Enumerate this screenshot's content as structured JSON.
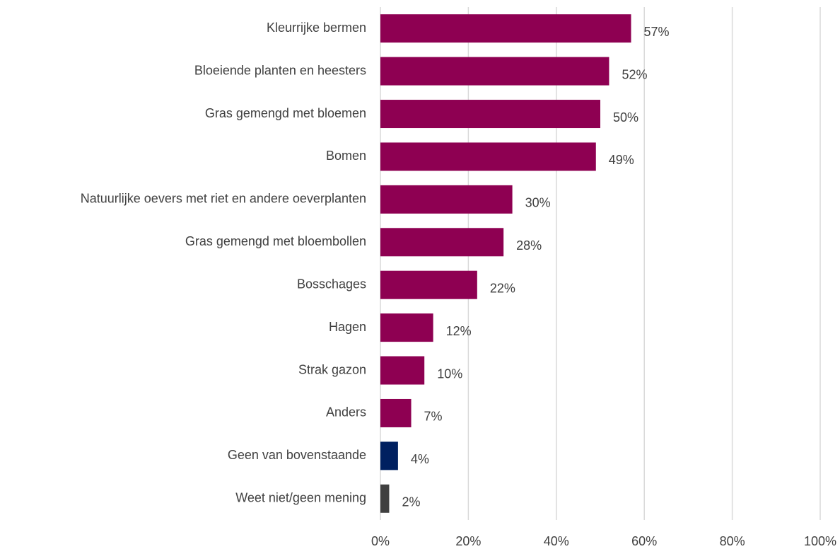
{
  "chart_data": {
    "type": "barh",
    "categories": [
      "Kleurrijke bermen",
      "Bloeiende planten en heesters",
      "Gras gemengd met bloemen",
      "Bomen",
      "Natuurlijke oevers met riet en andere oeverplanten",
      "Gras gemengd met bloembollen",
      "Bosschages",
      "Hagen",
      "Strak gazon",
      "Anders",
      "Geen van bovenstaande",
      "Weet niet/geen mening"
    ],
    "values": [
      57,
      52,
      50,
      49,
      30,
      28,
      22,
      12,
      10,
      7,
      4,
      2
    ],
    "value_labels": [
      "57%",
      "52%",
      "50%",
      "49%",
      "30%",
      "28%",
      "22%",
      "12%",
      "10%",
      "7%",
      "4%",
      "2%"
    ],
    "colors": [
      "#8e0052",
      "#8e0052",
      "#8e0052",
      "#8e0052",
      "#8e0052",
      "#8e0052",
      "#8e0052",
      "#8e0052",
      "#8e0052",
      "#8e0052",
      "#002060",
      "#404040"
    ],
    "xlim": [
      0,
      100
    ],
    "xticks": [
      {
        "value": 0,
        "label": "0%"
      },
      {
        "value": 20,
        "label": "20%"
      },
      {
        "value": 40,
        "label": "40%"
      },
      {
        "value": 60,
        "label": "60%"
      },
      {
        "value": 80,
        "label": "80%"
      },
      {
        "value": 100,
        "label": "100%"
      }
    ],
    "grid": true
  }
}
